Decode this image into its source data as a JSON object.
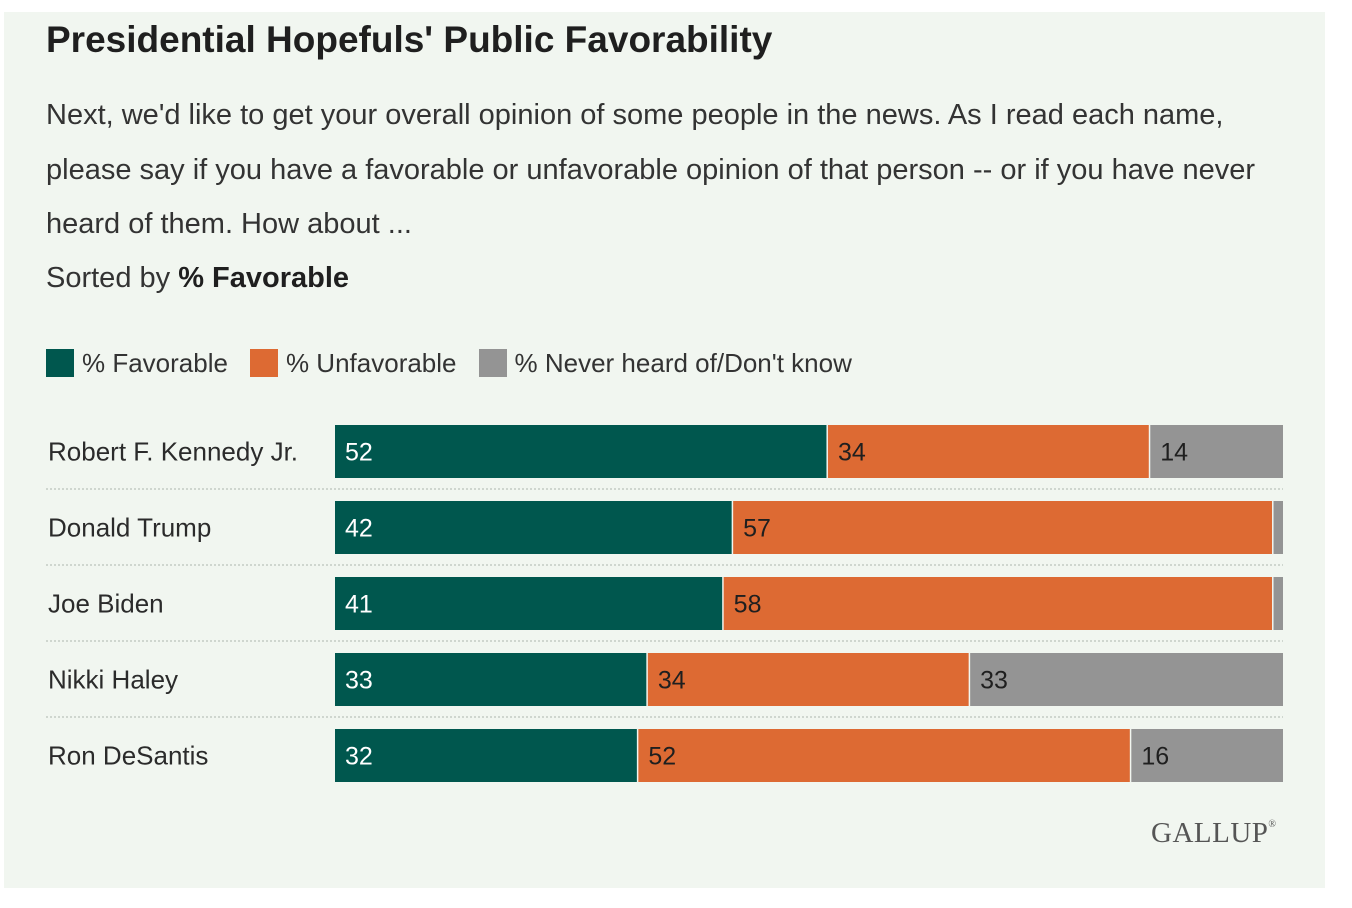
{
  "title": "Presidential Hopefuls' Public Favorability",
  "question": "Next, we'd like to get your overall opinion of some people in the news. As I read each name, please say if you have a favorable or unfavorable opinion of that person -- or if you have never heard of them. How about ...",
  "sort_prefix": "Sorted by",
  "sort_key": "% Favorable",
  "logo": "GALLUP",
  "colors": {
    "favorable": "#00574e",
    "unfavorable": "#dd6a33",
    "never": "#949494",
    "background": "#f1f6f0"
  },
  "chart_data": {
    "type": "bar",
    "orientation": "horizontal",
    "stacked": true,
    "title": "Presidential Hopefuls' Public Favorability",
    "xlim": [
      0,
      100
    ],
    "grid": false,
    "legend_placement": "top-left",
    "categories": [
      "Robert F. Kennedy Jr.",
      "Donald Trump",
      "Joe Biden",
      "Nikki Haley",
      "Ron DeSantis"
    ],
    "series": [
      {
        "name": "% Favorable",
        "values": [
          52,
          42,
          41,
          33,
          32
        ],
        "labels": [
          "52",
          "42",
          "41",
          "33",
          "32"
        ]
      },
      {
        "name": "% Unfavorable",
        "values": [
          34,
          57,
          58,
          34,
          52
        ],
        "labels": [
          "34",
          "57",
          "58",
          "34",
          "52"
        ]
      },
      {
        "name": "% Never heard of/Don't know",
        "values": [
          14,
          1,
          1,
          33,
          16
        ],
        "labels": [
          "14",
          "",
          "",
          "33",
          "16"
        ]
      }
    ]
  }
}
